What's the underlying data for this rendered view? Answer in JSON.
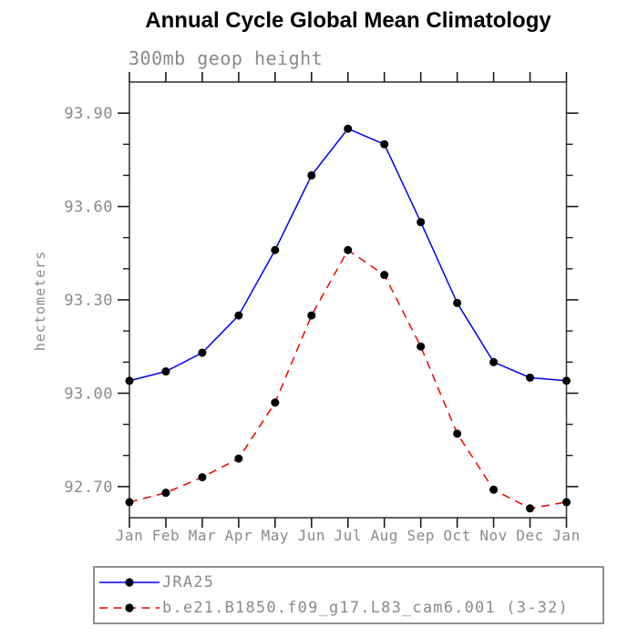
{
  "header": {
    "title": "Annual Cycle Global Mean Climatology",
    "subtitle": "300mb geop height"
  },
  "chart_data": {
    "type": "line",
    "title": "Annual Cycle Global Mean Climatology",
    "subtitle": "300mb geop height",
    "xlabel": "",
    "ylabel": "hectometers",
    "categories": [
      "Jan",
      "Feb",
      "Mar",
      "Apr",
      "May",
      "Jun",
      "Jul",
      "Aug",
      "Sep",
      "Oct",
      "Nov",
      "Dec",
      "Jan"
    ],
    "ylim": [
      92.6,
      94.0
    ],
    "y_major_ticks": [
      93.9,
      93.6,
      93.3,
      93.0,
      92.7
    ],
    "y_minor_step": 0.1,
    "y_tick_decimals": 2,
    "grid": false,
    "legend_position": "bottom",
    "series": [
      {
        "name": "JRA25",
        "color": "#0000ee",
        "style": "solid",
        "marker": "circle",
        "marker_color": "#000000",
        "values": [
          93.04,
          93.07,
          93.13,
          93.25,
          93.46,
          93.7,
          93.85,
          93.8,
          93.55,
          93.29,
          93.1,
          93.05,
          93.04
        ]
      },
      {
        "name": "b.e21.B1850.f09_g17.L83_cam6.001 (3-32)",
        "color": "#ee0000",
        "style": "dashed",
        "marker": "circle",
        "marker_color": "#000000",
        "values": [
          92.65,
          92.68,
          92.73,
          92.79,
          92.97,
          93.25,
          93.46,
          93.38,
          93.15,
          92.87,
          92.69,
          92.63,
          92.65
        ]
      }
    ],
    "colors": {
      "axis_box": "#3a3a3a",
      "tick": "#1a1a1a",
      "tick_label": "#8a8a8a",
      "title": "#000000",
      "legend_border": "#909090"
    }
  }
}
